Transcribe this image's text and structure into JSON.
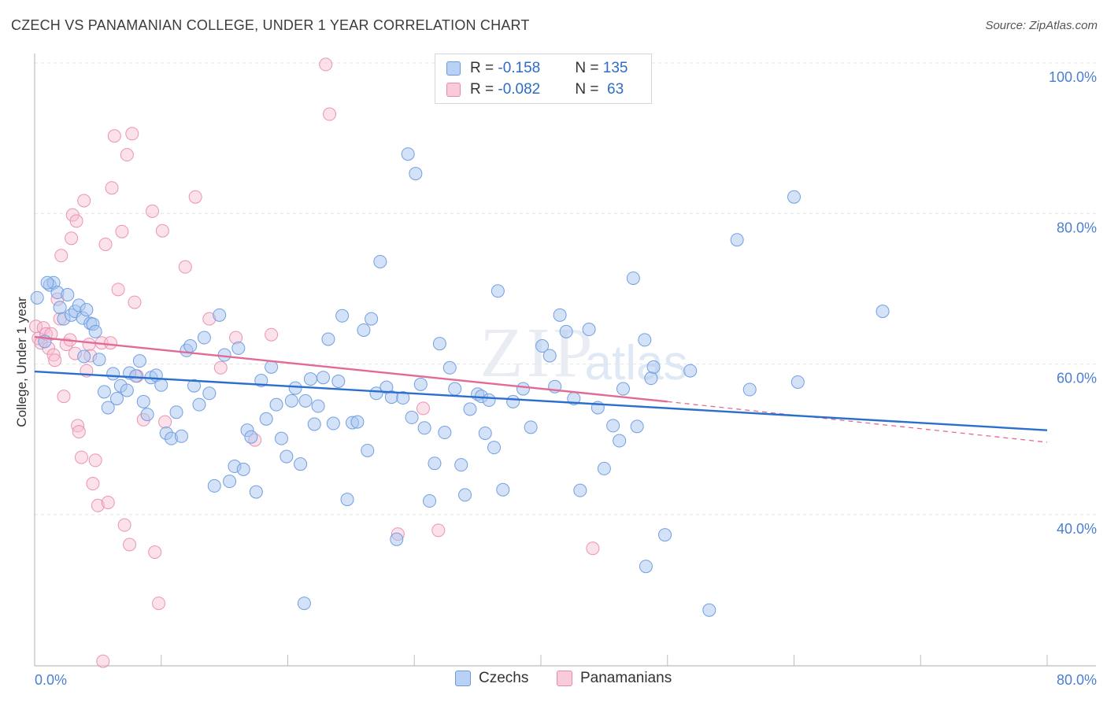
{
  "header": {
    "title": "CZECH VS PANAMANIAN COLLEGE, UNDER 1 YEAR CORRELATION CHART",
    "source": "Source: ZipAtlas.com"
  },
  "colors": {
    "czech_fill": "#a9c6ef",
    "czech_stroke": "#6a9be0",
    "czech_line": "#2a6fcf",
    "panama_fill": "#f7bcd0",
    "panama_stroke": "#e88aac",
    "panama_line": "#e36a96",
    "axis_label": "#4a7fd0"
  },
  "legend": {
    "czech": {
      "r_label": "R = ",
      "r_value": "-0.158",
      "n_label": "N = ",
      "n_value": "135"
    },
    "panama": {
      "r_label": "R = ",
      "r_value": "-0.082",
      "n_label": "N = ",
      "n_value": " 63"
    }
  },
  "bottom_legend": {
    "czech": "Czechs",
    "panama": "Panamanians"
  },
  "chart_data": {
    "type": "scatter",
    "title": "CZECH VS PANAMANIAN COLLEGE, UNDER 1 YEAR CORRELATION CHART",
    "xlabel": "",
    "ylabel": "College, Under 1 year",
    "xlim": [
      0,
      80
    ],
    "ylim": [
      20,
      100
    ],
    "x_tick_labels": [
      "0.0%",
      "80.0%"
    ],
    "y_ticks": [
      40,
      60,
      80,
      100
    ],
    "y_tick_labels": [
      "40.0%",
      "60.0%",
      "80.0%",
      "100.0%"
    ],
    "grid": true,
    "watermark": "ZIPatlas",
    "series": [
      {
        "name": "Czechs",
        "r": -0.158,
        "n": 135,
        "trend": {
          "x": [
            0,
            80
          ],
          "y": [
            59.0,
            51.2
          ]
        },
        "points": [
          [
            0.2,
            68.8
          ],
          [
            0.8,
            63.0
          ],
          [
            1.2,
            70.5
          ],
          [
            1.5,
            70.8
          ],
          [
            1.8,
            69.5
          ],
          [
            2.0,
            67.5
          ],
          [
            2.3,
            66.0
          ],
          [
            2.6,
            69.2
          ],
          [
            2.9,
            66.5
          ],
          [
            3.2,
            67.0
          ],
          [
            3.5,
            67.8
          ],
          [
            3.8,
            66.1
          ],
          [
            4.1,
            67.2
          ],
          [
            4.4,
            65.4
          ],
          [
            4.6,
            65.3
          ],
          [
            4.8,
            64.3
          ],
          [
            5.1,
            60.6
          ],
          [
            3.9,
            61.0
          ],
          [
            6.2,
            58.7
          ],
          [
            5.5,
            56.3
          ],
          [
            6.8,
            57.1
          ],
          [
            7.3,
            56.5
          ],
          [
            5.8,
            54.2
          ],
          [
            6.5,
            55.4
          ],
          [
            7.5,
            58.8
          ],
          [
            8.0,
            58.4
          ],
          [
            8.3,
            60.4
          ],
          [
            8.6,
            55.0
          ],
          [
            8.9,
            53.3
          ],
          [
            9.2,
            58.2
          ],
          [
            9.6,
            58.5
          ],
          [
            10.0,
            57.2
          ],
          [
            10.4,
            50.8
          ],
          [
            10.8,
            50.1
          ],
          [
            11.2,
            53.6
          ],
          [
            11.6,
            50.4
          ],
          [
            12.0,
            61.8
          ],
          [
            12.3,
            62.4
          ],
          [
            12.6,
            57.1
          ],
          [
            13.0,
            54.6
          ],
          [
            13.4,
            63.5
          ],
          [
            13.8,
            56.1
          ],
          [
            14.2,
            43.8
          ],
          [
            14.6,
            66.5
          ],
          [
            15.0,
            61.2
          ],
          [
            15.4,
            44.4
          ],
          [
            15.8,
            46.4
          ],
          [
            16.1,
            62.1
          ],
          [
            16.5,
            46.0
          ],
          [
            16.8,
            51.2
          ],
          [
            17.1,
            50.3
          ],
          [
            17.5,
            43.0
          ],
          [
            17.9,
            57.8
          ],
          [
            18.3,
            52.7
          ],
          [
            18.7,
            59.6
          ],
          [
            19.1,
            54.6
          ],
          [
            19.5,
            50.1
          ],
          [
            19.9,
            47.7
          ],
          [
            20.3,
            55.1
          ],
          [
            20.6,
            56.8
          ],
          [
            21.0,
            46.7
          ],
          [
            21.4,
            55.1
          ],
          [
            21.8,
            58.0
          ],
          [
            22.1,
            52.0
          ],
          [
            22.4,
            54.4
          ],
          [
            22.8,
            58.2
          ],
          [
            23.2,
            63.3
          ],
          [
            23.6,
            52.1
          ],
          [
            24.0,
            57.7
          ],
          [
            24.3,
            66.4
          ],
          [
            24.7,
            42.0
          ],
          [
            25.1,
            52.2
          ],
          [
            25.5,
            52.3
          ],
          [
            26.0,
            64.5
          ],
          [
            26.3,
            48.5
          ],
          [
            26.6,
            66.0
          ],
          [
            27.0,
            56.1
          ],
          [
            27.3,
            73.6
          ],
          [
            27.8,
            56.9
          ],
          [
            28.2,
            55.6
          ],
          [
            28.6,
            36.7
          ],
          [
            29.1,
            55.5
          ],
          [
            29.5,
            87.9
          ],
          [
            29.8,
            52.9
          ],
          [
            30.1,
            85.3
          ],
          [
            30.5,
            57.3
          ],
          [
            30.8,
            51.5
          ],
          [
            31.2,
            41.8
          ],
          [
            31.6,
            46.8
          ],
          [
            32.0,
            62.7
          ],
          [
            32.4,
            50.9
          ],
          [
            32.8,
            59.5
          ],
          [
            33.2,
            56.7
          ],
          [
            33.7,
            46.6
          ],
          [
            34.0,
            42.6
          ],
          [
            34.4,
            54.0
          ],
          [
            35.0,
            56.0
          ],
          [
            35.3,
            55.7
          ],
          [
            35.6,
            50.8
          ],
          [
            35.9,
            55.2
          ],
          [
            36.3,
            48.9
          ],
          [
            36.6,
            69.7
          ],
          [
            37.0,
            43.3
          ],
          [
            37.8,
            55.0
          ],
          [
            38.6,
            56.7
          ],
          [
            39.2,
            51.6
          ],
          [
            40.1,
            62.4
          ],
          [
            40.7,
            61.1
          ],
          [
            41.1,
            57.0
          ],
          [
            41.5,
            66.5
          ],
          [
            42.0,
            64.3
          ],
          [
            42.6,
            55.4
          ],
          [
            43.1,
            43.2
          ],
          [
            43.8,
            64.6
          ],
          [
            44.5,
            54.2
          ],
          [
            45.0,
            46.1
          ],
          [
            45.7,
            51.8
          ],
          [
            46.2,
            49.8
          ],
          [
            46.5,
            56.7
          ],
          [
            47.3,
            71.4
          ],
          [
            47.6,
            51.7
          ],
          [
            48.3,
            33.1
          ],
          [
            48.2,
            63.2
          ],
          [
            48.7,
            58.1
          ],
          [
            48.9,
            59.6
          ],
          [
            49.8,
            37.3
          ],
          [
            51.8,
            59.1
          ],
          [
            53.3,
            27.3
          ],
          [
            55.5,
            76.5
          ],
          [
            56.5,
            56.6
          ],
          [
            60.0,
            82.2
          ],
          [
            60.3,
            57.6
          ],
          [
            67.0,
            67.0
          ],
          [
            21.3,
            28.2
          ],
          [
            1.0,
            70.8
          ]
        ]
      },
      {
        "name": "Panamanians",
        "r": -0.082,
        "n": 63,
        "trend": {
          "x": [
            0,
            50
          ],
          "y": [
            63.6,
            55.0
          ],
          "dashed_extension": {
            "x": [
              50,
              80
            ],
            "y": [
              55.0,
              49.6
            ]
          }
        },
        "points": [
          [
            0.1,
            65.0
          ],
          [
            0.3,
            63.4
          ],
          [
            0.5,
            62.8
          ],
          [
            0.7,
            64.8
          ],
          [
            0.9,
            64.0
          ],
          [
            1.1,
            62.1
          ],
          [
            1.3,
            64.0
          ],
          [
            1.5,
            61.2
          ],
          [
            1.6,
            60.5
          ],
          [
            1.8,
            68.6
          ],
          [
            2.0,
            66.0
          ],
          [
            2.1,
            74.4
          ],
          [
            2.3,
            55.7
          ],
          [
            2.5,
            62.6
          ],
          [
            2.8,
            63.2
          ],
          [
            2.9,
            76.7
          ],
          [
            3.0,
            79.8
          ],
          [
            3.2,
            61.4
          ],
          [
            3.3,
            79.0
          ],
          [
            3.4,
            51.8
          ],
          [
            3.5,
            51.0
          ],
          [
            3.7,
            47.6
          ],
          [
            3.9,
            81.7
          ],
          [
            4.1,
            59.1
          ],
          [
            4.3,
            62.6
          ],
          [
            4.4,
            61.1
          ],
          [
            4.6,
            44.1
          ],
          [
            4.8,
            47.2
          ],
          [
            5.0,
            41.2
          ],
          [
            5.3,
            62.8
          ],
          [
            5.6,
            75.9
          ],
          [
            5.8,
            41.6
          ],
          [
            6.1,
            83.4
          ],
          [
            6.3,
            90.3
          ],
          [
            6.6,
            69.9
          ],
          [
            6.9,
            77.6
          ],
          [
            7.1,
            38.6
          ],
          [
            7.3,
            87.8
          ],
          [
            7.5,
            36.0
          ],
          [
            7.7,
            90.6
          ],
          [
            7.9,
            68.2
          ],
          [
            8.1,
            58.4
          ],
          [
            8.6,
            52.6
          ],
          [
            9.3,
            80.3
          ],
          [
            9.5,
            35.0
          ],
          [
            9.8,
            28.2
          ],
          [
            10.1,
            77.7
          ],
          [
            10.3,
            52.3
          ],
          [
            11.9,
            72.9
          ],
          [
            12.7,
            82.2
          ],
          [
            13.8,
            66.0
          ],
          [
            14.7,
            59.5
          ],
          [
            15.9,
            63.5
          ],
          [
            17.4,
            49.9
          ],
          [
            18.7,
            63.9
          ],
          [
            23.0,
            99.8
          ],
          [
            23.3,
            93.2
          ],
          [
            28.7,
            37.4
          ],
          [
            30.7,
            54.1
          ],
          [
            31.9,
            37.9
          ],
          [
            44.1,
            35.5
          ],
          [
            5.4,
            20.5
          ],
          [
            6.0,
            62.8
          ]
        ]
      }
    ]
  }
}
